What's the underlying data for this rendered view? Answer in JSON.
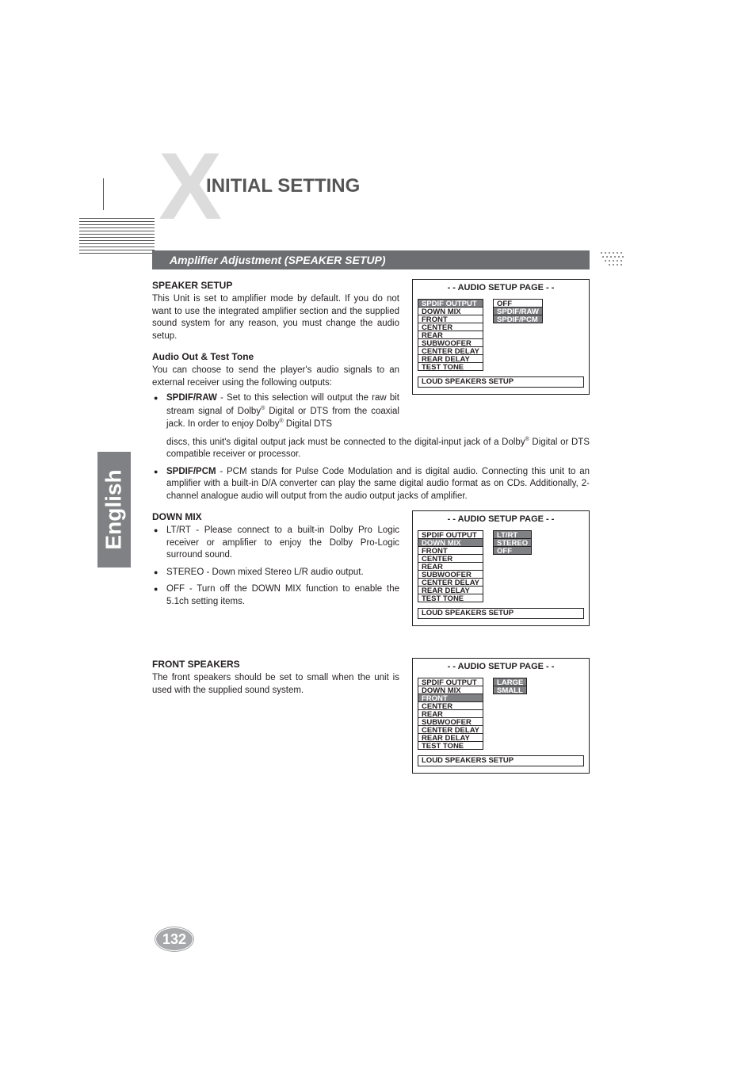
{
  "page": {
    "chapter_title": "INITIAL SETTING",
    "section_bar": "Amplifier Adjustment (SPEAKER SETUP)",
    "side_tab": "English",
    "page_number": "132"
  },
  "speaker_setup": {
    "heading": "SPEAKER SETUP",
    "body": "This Unit is set to amplifier mode by default. If you do not want to use the integrated amplifier section and the supplied sound system for any reason, you must change the audio setup."
  },
  "audio_out": {
    "heading": "Audio Out & Test Tone",
    "intro": "You can choose to send the player's audio signals to an external receiver using the following outputs:",
    "items": [
      {
        "label": "SPDIF/RAW",
        "text_before": " - Set to this selection will output the raw bit stream signal of Dolby",
        "sup1": "®",
        "text_mid": " Digital or DTS from the coaxial jack. In order to enjoy Dolby",
        "sup2": "®",
        "text_after": " Digital DTS discs, this unit's digital output jack must be connected to the digital-input jack of a Dolby",
        "sup3": "®",
        "text_end": " Digital or DTS compatible receiver or processor."
      },
      {
        "label": "SPDIF/PCM",
        "text": " - PCM stands for Pulse Code Modulation and is digital audio. Connecting this unit to an amplifier with a built-in D/A converter can play the same digital audio format as on CDs. Additionally, 2-channel analogue audio will output from the audio output jacks of amplifier."
      }
    ]
  },
  "down_mix": {
    "heading": "DOWN MIX",
    "items": [
      "LT/RT - Please connect to a built-in Dolby Pro Logic receiver or amplifier to enjoy the Dolby Pro-Logic surround sound.",
      "STEREO - Down mixed Stereo L/R audio output.",
      "OFF - Turn off the DOWN MIX function to enable the 5.1ch setting items."
    ]
  },
  "front_speakers": {
    "heading": "FRONT SPEAKERS",
    "body": "The front speakers should be set to small when the unit is used with the supplied sound system."
  },
  "osd_common": {
    "title": "- - AUDIO SETUP PAGE - -",
    "footer": "LOUD SPEAKERS  SETUP",
    "left_items": [
      "SPDIF OUTPUT",
      "DOWN MIX",
      "FRONT",
      "CENTER",
      "REAR",
      "SUBWOOFER",
      "CENTER DELAY",
      "REAR DELAY",
      "TEST TONE"
    ]
  },
  "osd1": {
    "highlight_index": 0,
    "right_items": [
      "OFF",
      "SPDIF/RAW",
      "SPDIF/PCM"
    ],
    "right_highlight": [
      false,
      true,
      true
    ]
  },
  "osd2": {
    "highlight_index": 1,
    "right_items": [
      "LT/RT",
      "STEREO",
      "OFF"
    ],
    "right_highlight": [
      true,
      true,
      true
    ]
  },
  "osd3": {
    "highlight_index": 2,
    "right_items": [
      "LARGE",
      "SMALL"
    ],
    "right_highlight": [
      true,
      true
    ]
  },
  "colors": {
    "bar_bg": "#6d6e71",
    "osd_hl": "#808184",
    "big_x": "#dcdcdc",
    "badge": "#a6a8ab"
  }
}
